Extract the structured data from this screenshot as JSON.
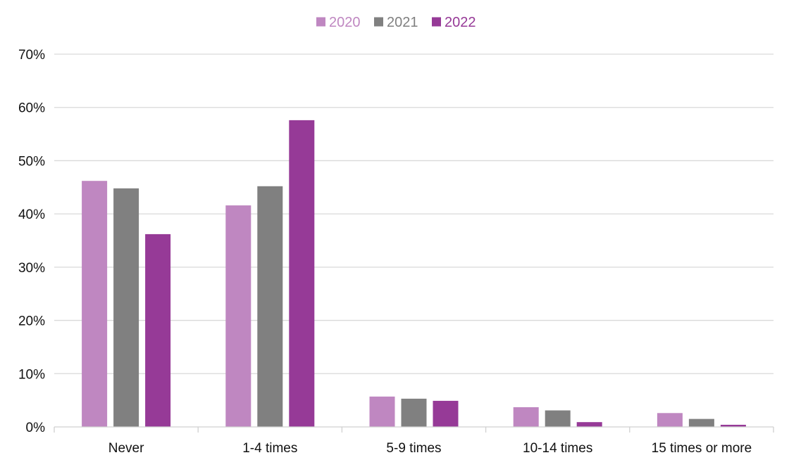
{
  "chart_data": {
    "type": "bar",
    "categories": [
      "Never",
      "1-4 times",
      "5-9 times",
      "10-14 times",
      "15 times or more"
    ],
    "series": [
      {
        "name": "2020",
        "color": "#BF87C1",
        "values": [
          46.2,
          41.6,
          5.7,
          3.7,
          2.6
        ]
      },
      {
        "name": "2021",
        "color": "#808080",
        "values": [
          44.8,
          45.2,
          5.3,
          3.1,
          1.5
        ]
      },
      {
        "name": "2022",
        "color": "#963A97",
        "values": [
          36.2,
          57.6,
          4.9,
          0.9,
          0.4
        ]
      }
    ],
    "title": "",
    "xlabel": "",
    "ylabel": "",
    "ylim": [
      0,
      70
    ],
    "yticks": [
      "0%",
      "10%",
      "20%",
      "30%",
      "40%",
      "50%",
      "60%",
      "70%"
    ],
    "ytick_values": [
      0,
      10,
      20,
      30,
      40,
      50,
      60,
      70
    ],
    "grid": true,
    "legend_position": "top-center"
  }
}
